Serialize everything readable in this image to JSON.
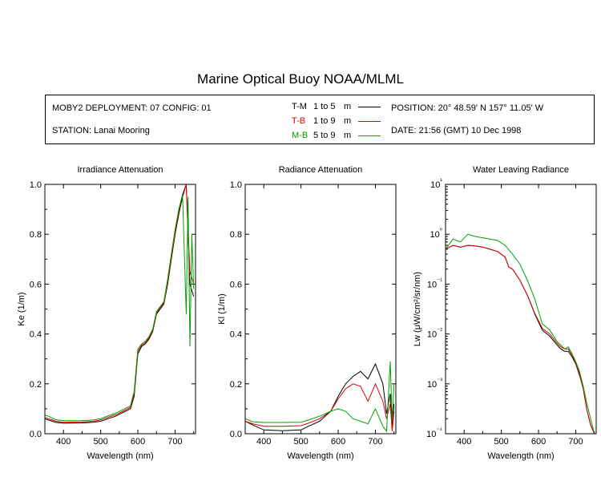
{
  "title": "Marine Optical Buoy NOAA/MLML",
  "info": {
    "deployment": "MOBY2 DEPLOYMENT: 07 CONFIG: 01",
    "station": "STATION: Lanai Mooring",
    "position": "POSITION: 20° 48.59' N   157° 11.05' W",
    "date": "DATE: 21:56 (GMT) 10 Dec 1998"
  },
  "legend": [
    {
      "code": "T-M",
      "range": "1 to 5",
      "unit": "m",
      "color": "#000000"
    },
    {
      "code": "T-B",
      "range": "1 to 9",
      "unit": "m",
      "color": "#e00000"
    },
    {
      "code": "M-B",
      "range": "5 to 9",
      "unit": "m",
      "color": "#00a000"
    }
  ],
  "chart_data": [
    {
      "type": "line",
      "title": "Irradiance Attenuation",
      "xlabel": "Wavelength (nm)",
      "ylabel": "Ke  (1/m)",
      "xlim": [
        350,
        755
      ],
      "ylim": [
        0,
        1.0
      ],
      "xticks": [
        "400",
        "500",
        "600",
        "700"
      ],
      "yticks": [
        "0.0",
        "0.2",
        "0.4",
        "0.6",
        "0.8",
        "1.0"
      ],
      "series": [
        {
          "name": "T-M",
          "color": "#000000",
          "x": [
            350,
            360,
            370,
            380,
            400,
            450,
            480,
            500,
            520,
            540,
            560,
            580,
            590,
            600,
            610,
            620,
            630,
            640,
            650,
            660,
            670,
            680,
            690,
            700,
            710,
            720,
            730,
            740,
            750
          ],
          "y": [
            0.06,
            0.055,
            0.05,
            0.045,
            0.042,
            0.043,
            0.046,
            0.05,
            0.06,
            0.07,
            0.085,
            0.1,
            0.15,
            0.32,
            0.35,
            0.36,
            0.38,
            0.41,
            0.48,
            0.5,
            0.52,
            0.6,
            0.7,
            0.8,
            0.88,
            0.95,
            1.0,
            0.6,
            0.55
          ]
        },
        {
          "name": "T-B",
          "color": "#e00000",
          "x": [
            350,
            360,
            370,
            380,
            400,
            450,
            480,
            500,
            520,
            540,
            560,
            580,
            590,
            600,
            610,
            620,
            630,
            640,
            650,
            660,
            670,
            680,
            690,
            700,
            710,
            720,
            730,
            740,
            750
          ],
          "y": [
            0.065,
            0.06,
            0.055,
            0.05,
            0.046,
            0.047,
            0.05,
            0.055,
            0.066,
            0.076,
            0.09,
            0.106,
            0.16,
            0.33,
            0.355,
            0.365,
            0.385,
            0.415,
            0.485,
            0.505,
            0.525,
            0.61,
            0.71,
            0.81,
            0.89,
            0.96,
            1.0,
            0.65,
            0.6
          ]
        },
        {
          "name": "M-B",
          "color": "#00a000",
          "x": [
            350,
            360,
            370,
            380,
            400,
            450,
            480,
            500,
            520,
            540,
            560,
            580,
            590,
            600,
            610,
            620,
            630,
            640,
            650,
            660,
            670,
            680,
            690,
            700,
            710,
            720,
            725,
            730,
            735,
            740,
            745,
            750
          ],
          "y": [
            0.075,
            0.07,
            0.062,
            0.056,
            0.052,
            0.052,
            0.055,
            0.06,
            0.072,
            0.082,
            0.096,
            0.112,
            0.17,
            0.34,
            0.36,
            0.37,
            0.39,
            0.42,
            0.49,
            0.51,
            0.53,
            0.62,
            0.72,
            0.82,
            0.9,
            0.96,
            0.72,
            0.48,
            0.95,
            0.35,
            0.8,
            0.58
          ]
        }
      ]
    },
    {
      "type": "line",
      "title": "Radiance Attenuation",
      "xlabel": "Wavelength (nm)",
      "ylabel": "Kl  (1/m)",
      "xlim": [
        350,
        755
      ],
      "ylim": [
        0,
        1.0
      ],
      "xticks": [
        "400",
        "500",
        "600",
        "700"
      ],
      "yticks": [
        "0.0",
        "0.2",
        "0.4",
        "0.6",
        "0.8",
        "1.0"
      ],
      "series": [
        {
          "name": "T-M",
          "color": "#000000",
          "x": [
            350,
            370,
            400,
            450,
            500,
            520,
            550,
            580,
            600,
            620,
            640,
            660,
            680,
            700,
            720,
            730,
            740,
            745,
            750
          ],
          "y": [
            0.05,
            0.035,
            0.015,
            0.012,
            0.015,
            0.03,
            0.05,
            0.09,
            0.15,
            0.2,
            0.23,
            0.25,
            0.22,
            0.28,
            0.2,
            0.08,
            0.16,
            0.02,
            0.12
          ]
        },
        {
          "name": "T-B",
          "color": "#e00000",
          "x": [
            350,
            370,
            400,
            450,
            500,
            520,
            550,
            580,
            600,
            620,
            640,
            660,
            680,
            700,
            720,
            730,
            740,
            745,
            750
          ],
          "y": [
            0.05,
            0.04,
            0.03,
            0.03,
            0.032,
            0.042,
            0.06,
            0.09,
            0.14,
            0.18,
            0.2,
            0.19,
            0.13,
            0.2,
            0.13,
            0.06,
            0.12,
            0.01,
            0.09
          ]
        },
        {
          "name": "M-B",
          "color": "#00a000",
          "x": [
            350,
            370,
            400,
            450,
            500,
            520,
            550,
            580,
            600,
            620,
            640,
            660,
            680,
            700,
            720,
            730,
            740,
            745,
            750
          ],
          "y": [
            0.06,
            0.048,
            0.045,
            0.045,
            0.046,
            0.055,
            0.07,
            0.09,
            0.1,
            0.09,
            0.06,
            0.05,
            0.04,
            0.1,
            0.03,
            0.01,
            0.29,
            0.05,
            0.2
          ]
        }
      ]
    },
    {
      "type": "line",
      "title": "Water Leaving Radiance",
      "xlabel": "Wavelength (nm)",
      "ylabel": "Lw  (μW/cm²/sr/nm)",
      "xlim": [
        350,
        755
      ],
      "ylim": [
        0.0001,
        10
      ],
      "yscale": "log",
      "xticks": [
        "400",
        "500",
        "600",
        "700"
      ],
      "yticks": [
        "10⁻⁴",
        "10⁻³",
        "10⁻²",
        "10⁻¹",
        "10⁰",
        "10¹"
      ],
      "series": [
        {
          "name": "T-M",
          "color": "#000000",
          "x": [
            350,
            370,
            390,
            410,
            430,
            450,
            470,
            490,
            510,
            520,
            530,
            550,
            570,
            590,
            610,
            630,
            650,
            660,
            670,
            680,
            690,
            700,
            710,
            720,
            730,
            740,
            750
          ],
          "y": [
            0.5,
            0.6,
            0.55,
            0.6,
            0.58,
            0.55,
            0.5,
            0.45,
            0.35,
            0.22,
            0.2,
            0.12,
            0.06,
            0.025,
            0.012,
            0.009,
            0.006,
            0.005,
            0.0045,
            0.0045,
            0.0035,
            0.0025,
            0.0015,
            0.0008,
            0.0003,
            0.00015,
            0.0001
          ]
        },
        {
          "name": "T-B",
          "color": "#e00000",
          "x": [
            350,
            370,
            390,
            410,
            430,
            450,
            470,
            490,
            510,
            520,
            530,
            550,
            570,
            590,
            610,
            630,
            650,
            660,
            670,
            680,
            690,
            700,
            710,
            720,
            730,
            740,
            750
          ],
          "y": [
            0.5,
            0.6,
            0.55,
            0.6,
            0.58,
            0.55,
            0.5,
            0.45,
            0.35,
            0.22,
            0.2,
            0.12,
            0.06,
            0.026,
            0.013,
            0.01,
            0.0065,
            0.0055,
            0.005,
            0.005,
            0.0038,
            0.0026,
            0.0016,
            0.0008,
            0.0003,
            0.00015,
            0.0001
          ]
        },
        {
          "name": "M-B",
          "color": "#00a000",
          "x": [
            350,
            370,
            390,
            410,
            430,
            450,
            470,
            490,
            510,
            530,
            550,
            570,
            590,
            610,
            630,
            650,
            660,
            670,
            680,
            690,
            700,
            710,
            720,
            730,
            740,
            750
          ],
          "y": [
            0.5,
            0.8,
            0.7,
            1.0,
            0.9,
            0.85,
            0.8,
            0.75,
            0.6,
            0.4,
            0.25,
            0.12,
            0.05,
            0.016,
            0.012,
            0.007,
            0.006,
            0.005,
            0.0055,
            0.004,
            0.0028,
            0.0018,
            0.0009,
            0.0004,
            0.0002,
            0.0001
          ]
        }
      ]
    }
  ]
}
